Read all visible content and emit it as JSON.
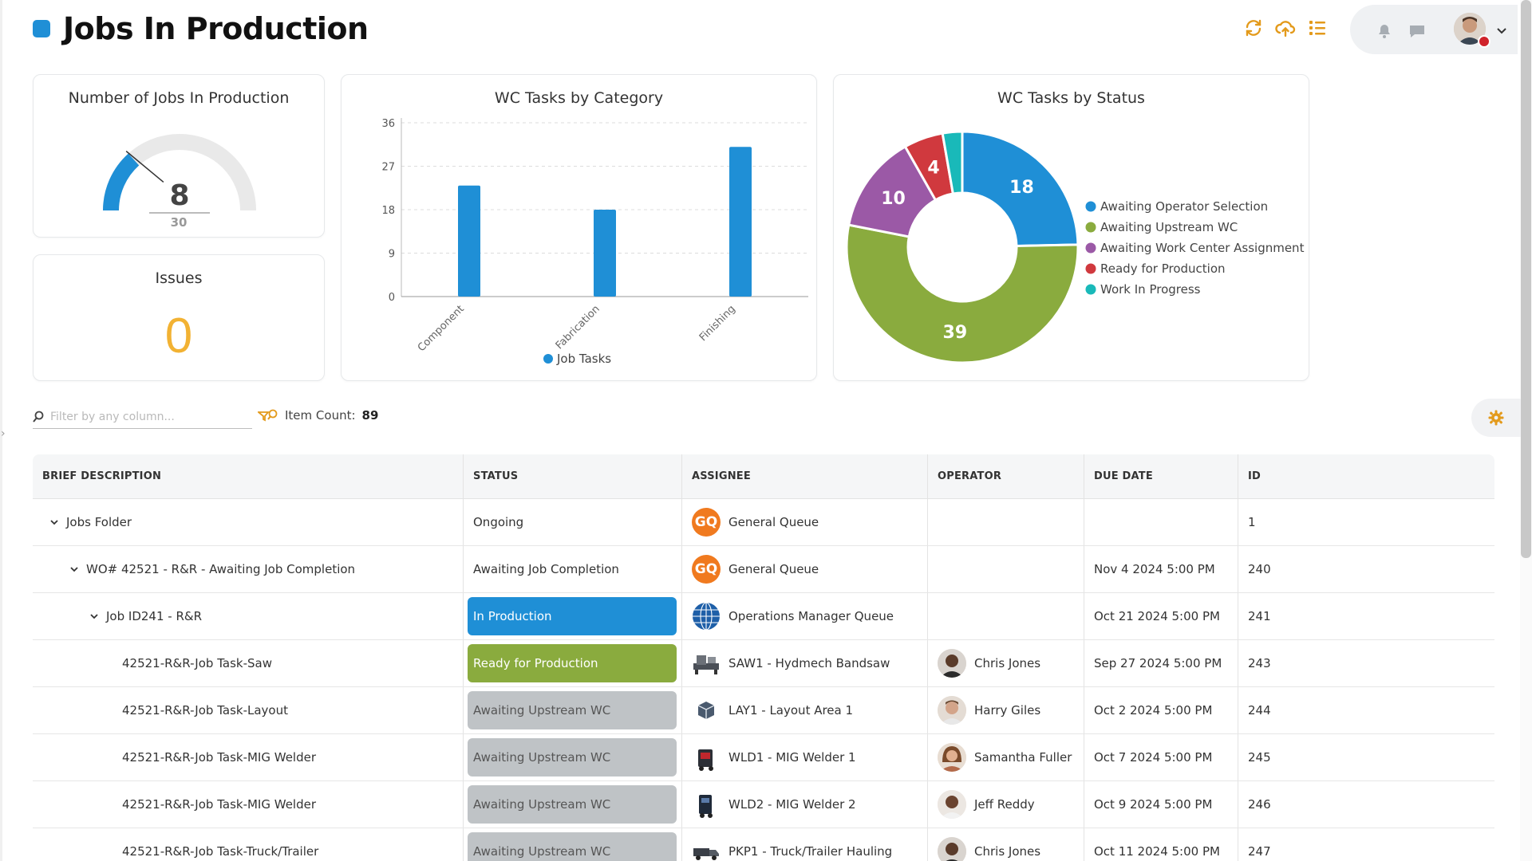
{
  "header": {
    "title": "Jobs In Production",
    "accent": "#1f8fd6",
    "tools": [
      "refresh-icon",
      "cloud-upload-icon",
      "list-icon"
    ],
    "tool_color": "#e39a1b"
  },
  "gauge_card": {
    "title": "Number of Jobs In Production",
    "value": "8",
    "max": "30",
    "fill_fraction": 0.267,
    "color": "#1f8fd6"
  },
  "issues_card": {
    "title": "Issues",
    "value": "0",
    "color": "#f2b233"
  },
  "category_chart": {
    "title": "WC Tasks by Category",
    "chart_data": {
      "type": "bar",
      "categories": [
        "Component",
        "Fabrication",
        "Finishing"
      ],
      "series": [
        {
          "name": "Job Tasks",
          "values": [
            23,
            18,
            31
          ]
        }
      ],
      "yticks": [
        "0",
        "9",
        "18",
        "27",
        "36"
      ],
      "ylim": [
        0,
        36
      ],
      "grid": true,
      "legend": "bottom",
      "color": "#1f8fd6"
    }
  },
  "status_chart": {
    "title": "WC Tasks by Status",
    "chart_data": {
      "type": "pie",
      "slices": [
        {
          "label": "Awaiting Operator Selection",
          "value": 18,
          "color": "#1f8fd6"
        },
        {
          "label": "Awaiting Upstream WC",
          "value": 39,
          "color": "#8aab3e"
        },
        {
          "label": "Awaiting Work Center Assignment",
          "value": 10,
          "color": "#9b59a6"
        },
        {
          "label": "Ready for Production",
          "value": 4,
          "color": "#d0393e"
        },
        {
          "label": "Work In Progress",
          "value": 2,
          "color": "#19b9b9"
        }
      ],
      "shown_labels": [
        "18",
        "39",
        "10",
        "4",
        ""
      ],
      "legend": "right"
    }
  },
  "filter": {
    "placeholder": "Filter by any column..."
  },
  "item_count": {
    "label": "Item Count:",
    "value": "89"
  },
  "table": {
    "columns": [
      "BRIEF DESCRIPTION",
      "STATUS",
      "ASSIGNEE",
      "OPERATOR",
      "DUE DATE",
      "ID"
    ],
    "rows": [
      {
        "description": "Jobs Folder",
        "status": "Ongoing",
        "assignee": "General Queue",
        "operator": "",
        "due": "",
        "id": "1"
      },
      {
        "description": "WO# 42521 - R&R - Awaiting Job Completion",
        "status": "Awaiting Job Completion",
        "assignee": "General Queue",
        "operator": "",
        "due": "Nov 4 2024  5:00 PM",
        "id": "240"
      },
      {
        "description": "Job ID241 - R&R",
        "status": "In Production",
        "assignee": "Operations Manager Queue",
        "operator": "",
        "due": "Oct 21 2024  5:00 PM",
        "id": "241"
      },
      {
        "description": "42521-R&R-Job Task-Saw",
        "status": "Ready for Production",
        "assignee": "SAW1 - Hydmech Bandsaw",
        "operator": "Chris Jones",
        "due": "Sep 27 2024  5:00 PM",
        "id": "243"
      },
      {
        "description": "42521-R&R-Job Task-Layout",
        "status": "Awaiting Upstream WC",
        "assignee": "LAY1 - Layout Area 1",
        "operator": "Harry Giles",
        "due": "Oct 2 2024  5:00 PM",
        "id": "244"
      },
      {
        "description": "42521-R&R-Job Task-MIG Welder",
        "status": "Awaiting Upstream WC",
        "assignee": "WLD1 - MIG Welder 1",
        "operator": "Samantha Fuller",
        "due": "Oct 7 2024  5:00 PM",
        "id": "245"
      },
      {
        "description": "42521-R&R-Job Task-MIG Welder",
        "status": "Awaiting Upstream WC",
        "assignee": "WLD2 - MIG Welder 2",
        "operator": "Jeff Reddy",
        "due": "Oct 9 2024  5:00 PM",
        "id": "246"
      },
      {
        "description": "42521-R&R-Job Task-Truck/Trailer",
        "status": "Awaiting Upstream WC",
        "assignee": "PKP1 - Truck/Trailer Hauling",
        "operator": "Chris Jones",
        "due": "Oct 11 2024  5:00 PM",
        "id": "247"
      }
    ],
    "gq_text": "GQ",
    "status_colors": {
      "In Production": "#1f8fd6",
      "Ready for Production": "#8aab3e",
      "Awaiting Upstream WC": "#bfc3c6"
    }
  }
}
